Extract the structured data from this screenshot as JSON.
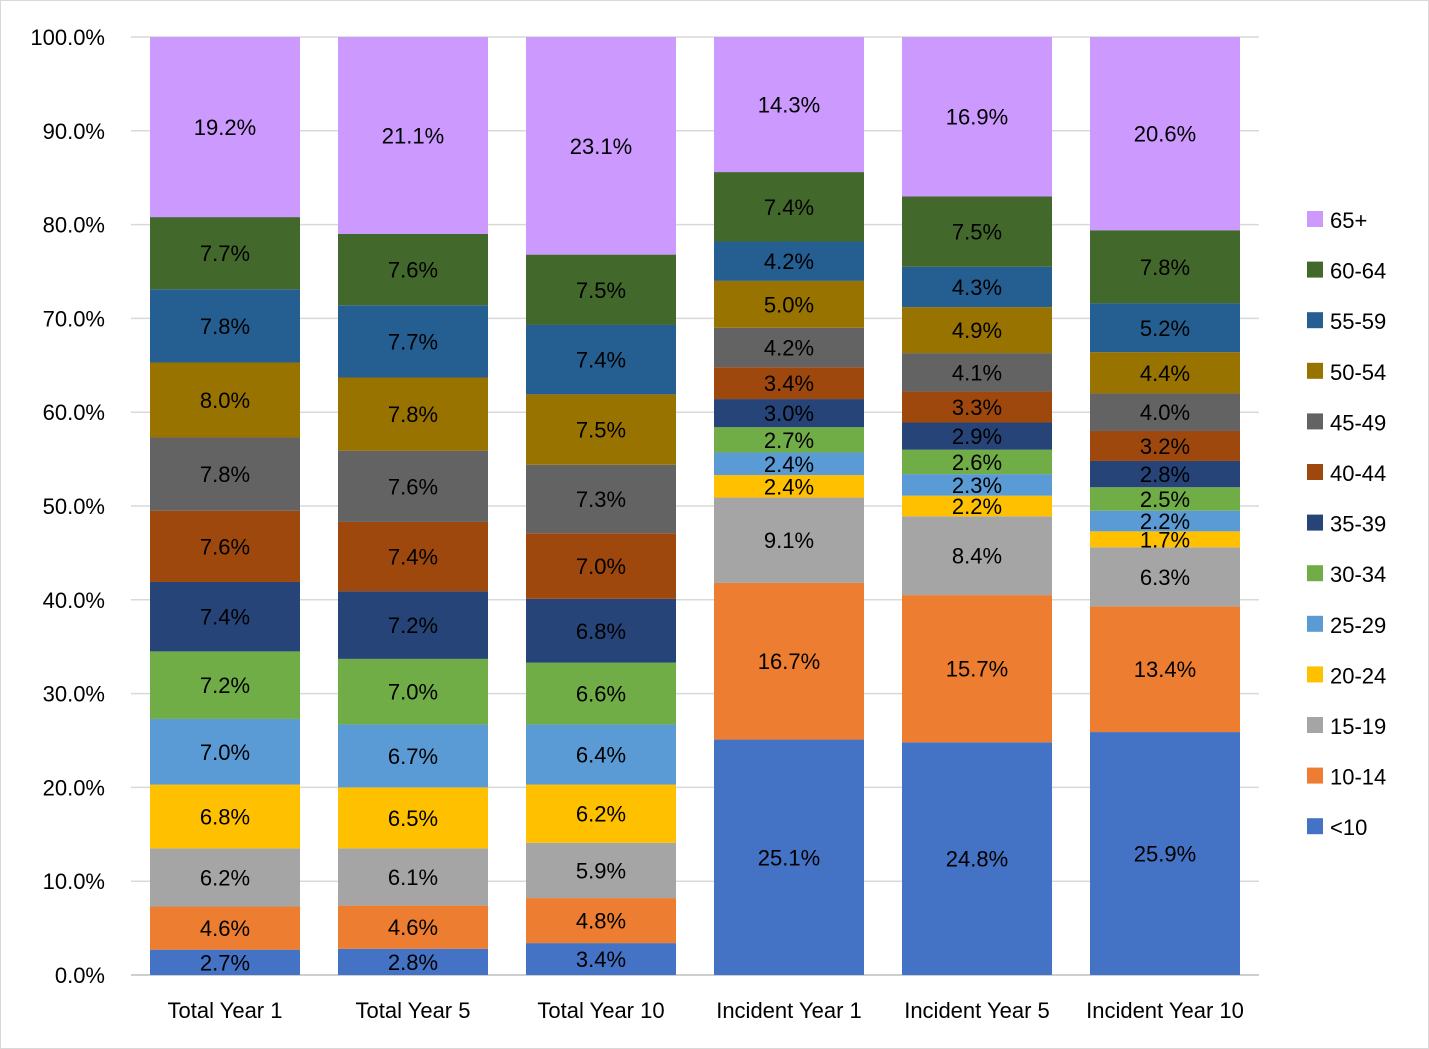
{
  "chart_data": {
    "type": "bar",
    "stacked": true,
    "title": "",
    "xlabel": "",
    "ylabel": "",
    "ylim": [
      0,
      100
    ],
    "ytick_step": 10,
    "ytick_labels": [
      "0.0%",
      "10.0%",
      "20.0%",
      "30.0%",
      "40.0%",
      "50.0%",
      "60.0%",
      "70.0%",
      "80.0%",
      "90.0%",
      "100.0%"
    ],
    "legend_position": "right",
    "grid": true,
    "categories": [
      "Total Year 1",
      "Total Year 5",
      "Total Year 10",
      "Incident Year 1",
      "Incident Year 5",
      "Incident Year 10"
    ],
    "series": [
      {
        "name": "<10",
        "color": "#4472C4",
        "label_color": "#000000",
        "values": [
          2.7,
          2.8,
          3.4,
          25.1,
          24.8,
          25.9
        ]
      },
      {
        "name": "10-14",
        "color": "#ED7D31",
        "label_color": "#000000",
        "values": [
          4.6,
          4.6,
          4.8,
          16.7,
          15.7,
          13.4
        ]
      },
      {
        "name": "15-19",
        "color": "#A5A5A5",
        "label_color": "#000000",
        "values": [
          6.2,
          6.1,
          5.9,
          9.1,
          8.4,
          6.3
        ]
      },
      {
        "name": "20-24",
        "color": "#FFC000",
        "label_color": "#000000",
        "values": [
          6.8,
          6.5,
          6.2,
          2.4,
          2.2,
          1.7
        ]
      },
      {
        "name": "25-29",
        "color": "#5B9BD5",
        "label_color": "#000000",
        "values": [
          7.0,
          6.7,
          6.4,
          2.4,
          2.3,
          2.2
        ]
      },
      {
        "name": "30-34",
        "color": "#70AD47",
        "label_color": "#000000",
        "values": [
          7.2,
          7.0,
          6.6,
          2.7,
          2.6,
          2.5
        ]
      },
      {
        "name": "35-39",
        "color": "#264478",
        "label_color": "#000000",
        "values": [
          7.4,
          7.2,
          6.8,
          3.0,
          2.9,
          2.8
        ]
      },
      {
        "name": "40-44",
        "color": "#9E480E",
        "label_color": "#000000",
        "values": [
          7.6,
          7.4,
          7.0,
          3.4,
          3.3,
          3.2
        ]
      },
      {
        "name": "45-49",
        "color": "#636363",
        "label_color": "#000000",
        "values": [
          7.8,
          7.6,
          7.3,
          4.2,
          4.1,
          4.0
        ]
      },
      {
        "name": "50-54",
        "color": "#997300",
        "label_color": "#000000",
        "values": [
          8.0,
          7.8,
          7.5,
          5.0,
          4.9,
          4.4
        ]
      },
      {
        "name": "55-59",
        "color": "#255E91",
        "label_color": "#000000",
        "values": [
          7.8,
          7.7,
          7.4,
          4.2,
          4.3,
          5.2
        ]
      },
      {
        "name": "60-64",
        "color": "#43682B",
        "label_color": "#000000",
        "values": [
          7.7,
          7.6,
          7.5,
          7.4,
          7.5,
          7.8
        ]
      },
      {
        "name": "65+",
        "color": "#CC99FF",
        "label_color": "#000000",
        "values": [
          19.2,
          21.1,
          23.1,
          14.3,
          16.9,
          20.6
        ]
      }
    ]
  },
  "colors": {
    "gridline": "#D9D9D9",
    "axis": "#BFBFBF",
    "background": "#FFFFFF"
  }
}
